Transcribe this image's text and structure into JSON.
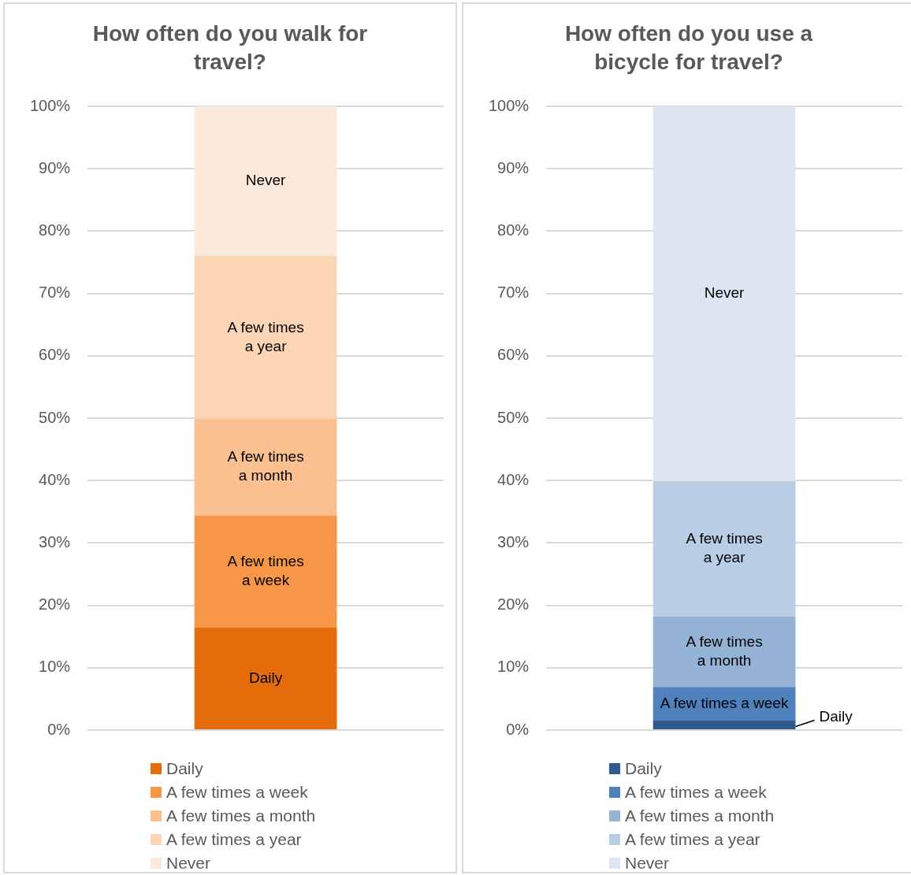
{
  "chart_data": [
    {
      "type": "bar",
      "title": "How often do you walk for travel?",
      "stacked": true,
      "categories": [
        null
      ],
      "ylim": [
        0,
        100
      ],
      "yticks": [
        {
          "value": 0,
          "label": "0%"
        },
        {
          "value": 10,
          "label": "10%"
        },
        {
          "value": 20,
          "label": "20%"
        },
        {
          "value": 30,
          "label": "30%"
        },
        {
          "value": 40,
          "label": "40%"
        },
        {
          "value": 50,
          "label": "50%"
        },
        {
          "value": 60,
          "label": "60%"
        },
        {
          "value": 70,
          "label": "70%"
        },
        {
          "value": 80,
          "label": "80%"
        },
        {
          "value": 90,
          "label": "90%"
        },
        {
          "value": 100,
          "label": "100%"
        }
      ],
      "grid": "y",
      "legend": "bottom",
      "series": [
        {
          "name": "Daily",
          "color": "#e46c0a",
          "values": [
            16.4
          ],
          "value_labels": [
            "Daily"
          ]
        },
        {
          "name": "A few times a week",
          "color": "#f79646",
          "values": [
            18.0
          ],
          "value_labels": [
            "A few times a week"
          ]
        },
        {
          "name": "A few times a month",
          "color": "#fac090",
          "values": [
            15.5
          ],
          "value_labels": [
            "A few times a month"
          ]
        },
        {
          "name": "A few times a year",
          "color": "#fcd5b5",
          "values": [
            26.1
          ],
          "value_labels": [
            "A few times a year"
          ]
        },
        {
          "name": "Never",
          "color": "#fde9d9",
          "values": [
            24.0
          ],
          "value_labels": [
            "Never"
          ]
        }
      ]
    },
    {
      "type": "bar",
      "title": "How often do you use a bicycle for travel?",
      "stacked": true,
      "categories": [
        null
      ],
      "ylim": [
        0,
        100
      ],
      "yticks": [
        {
          "value": 0,
          "label": "0%"
        },
        {
          "value": 10,
          "label": "10%"
        },
        {
          "value": 20,
          "label": "20%"
        },
        {
          "value": 30,
          "label": "30%"
        },
        {
          "value": 40,
          "label": "40%"
        },
        {
          "value": 50,
          "label": "50%"
        },
        {
          "value": 60,
          "label": "60%"
        },
        {
          "value": 70,
          "label": "70%"
        },
        {
          "value": 80,
          "label": "80%"
        },
        {
          "value": 90,
          "label": "90%"
        },
        {
          "value": 100,
          "label": "100%"
        }
      ],
      "grid": "y",
      "legend": "bottom",
      "series": [
        {
          "name": "Daily",
          "color": "#2e5a90",
          "values": [
            1.5
          ],
          "value_labels": [
            "Daily"
          ]
        },
        {
          "name": "A few times a week",
          "color": "#4f81bd",
          "values": [
            5.4
          ],
          "value_labels": [
            "A few times a week"
          ]
        },
        {
          "name": "A few times a month",
          "color": "#95b3d7",
          "values": [
            11.3
          ],
          "value_labels": [
            "A few times a month"
          ]
        },
        {
          "name": "A few times a year",
          "color": "#b9cde5",
          "values": [
            21.7
          ],
          "value_labels": [
            "A few times a year"
          ]
        },
        {
          "name": "Never",
          "color": "#dce6f2",
          "values": [
            60.1
          ],
          "value_labels": [
            "Never"
          ]
        }
      ]
    }
  ]
}
